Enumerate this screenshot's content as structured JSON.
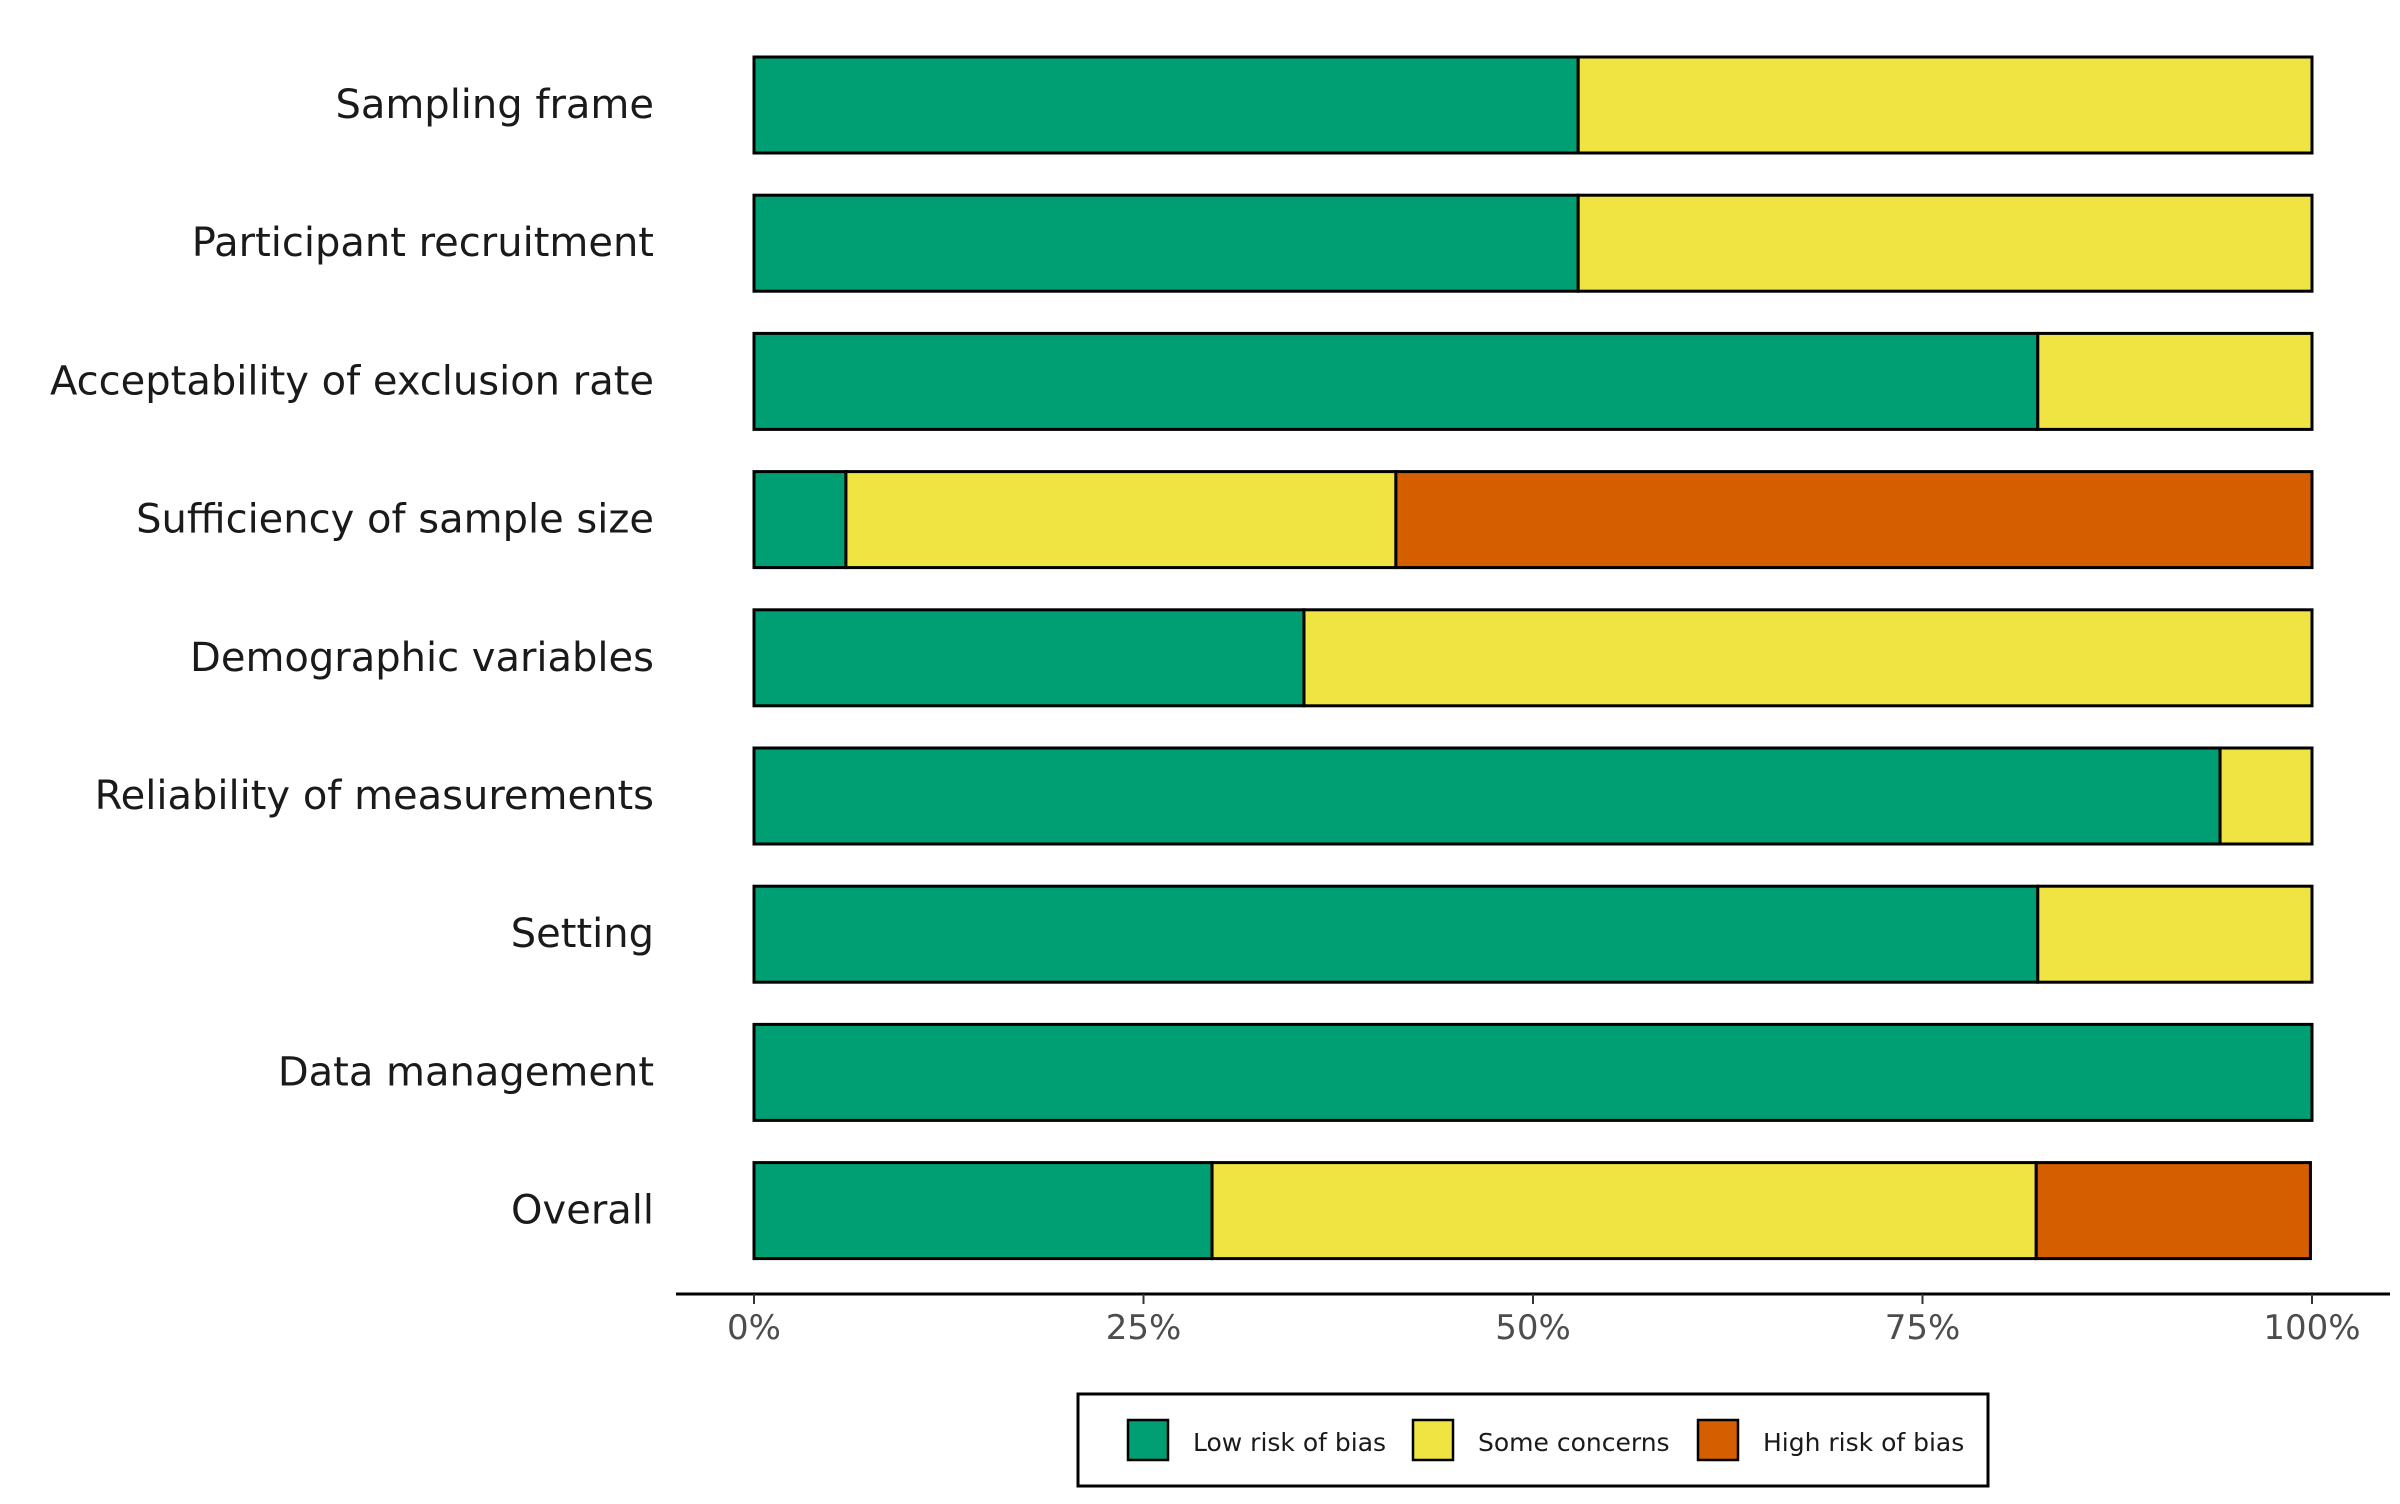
{
  "chart_data": {
    "type": "bar",
    "orientation": "horizontal",
    "stacked": true,
    "normalized": true,
    "title": "",
    "xlabel": "",
    "ylabel": "",
    "xlim": [
      0,
      100
    ],
    "x_ticks": [
      "0%",
      "25%",
      "50%",
      "75%",
      "100%"
    ],
    "x_tick_values": [
      0,
      25,
      50,
      75,
      100
    ],
    "grid": false,
    "legend_position": "bottom",
    "categories": [
      "Sampling frame",
      "Participant recruitment",
      "Acceptability of exclusion rate",
      "Sufficiency of sample size",
      "Demographic variables",
      "Reliability of measurements",
      "Setting",
      "Data management",
      "Overall"
    ],
    "series": [
      {
        "name": "Low risk of bias",
        "color": "#009E73",
        "values": [
          52.9,
          52.9,
          82.4,
          5.9,
          35.3,
          94.1,
          82.4,
          100,
          29.4
        ]
      },
      {
        "name": "Some concerns",
        "color": "#F0E442",
        "values": [
          47.1,
          47.1,
          17.6,
          35.3,
          64.7,
          5.9,
          17.6,
          0,
          52.9
        ]
      },
      {
        "name": "High risk of bias",
        "color": "#D55E00",
        "values": [
          0,
          0,
          0,
          58.8,
          0,
          0,
          0,
          0,
          17.6
        ]
      }
    ]
  }
}
